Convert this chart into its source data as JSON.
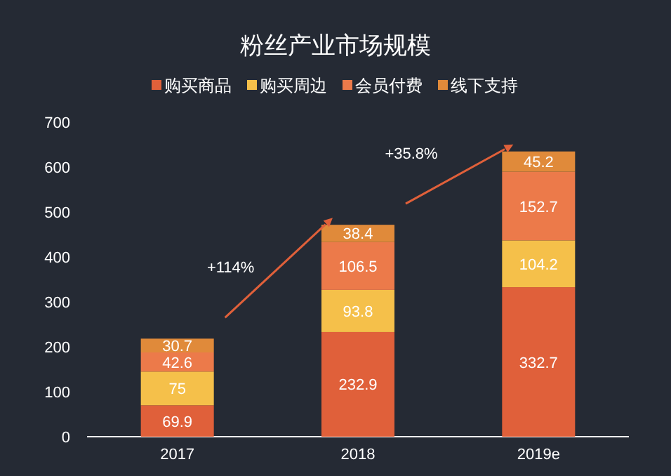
{
  "chart_data": {
    "type": "bar",
    "title": "粉丝产业市场规模",
    "categories": [
      "2017",
      "2018",
      "2019e"
    ],
    "series": [
      {
        "name": "购买商品",
        "color": "#e0603a",
        "values": [
          69.9,
          232.9,
          332.7
        ]
      },
      {
        "name": "购买周边",
        "color": "#f5c04a",
        "values": [
          75,
          93.8,
          104.2
        ]
      },
      {
        "name": "会员付费",
        "color": "#ec7a4a",
        "values": [
          42.6,
          106.5,
          152.7
        ]
      },
      {
        "name": "线下支持",
        "color": "#e08a3a",
        "values": [
          30.7,
          38.4,
          45.2
        ]
      }
    ],
    "stacked": true,
    "data_labels": true,
    "ylim": [
      0,
      700
    ],
    "yticks": [
      0,
      100,
      200,
      300,
      400,
      500,
      600,
      700
    ],
    "grid": false,
    "legend": "top",
    "annotations": [
      "+114%",
      "+35.8%"
    ]
  }
}
